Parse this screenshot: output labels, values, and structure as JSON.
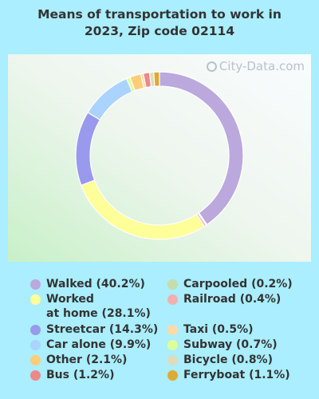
{
  "chart_data": {
    "type": "pie",
    "title": "Means of transportation to work in 2023, Zip code 02114",
    "donut": true,
    "slices": [
      {
        "label": "Walked (40.2%)",
        "value": 40.2,
        "color": "#bba8dd"
      },
      {
        "label": "Worked at home (28.1%)",
        "label_lines": [
          "Worked",
          "at home (28.1%)"
        ],
        "value": 28.1,
        "color": "#ffff99"
      },
      {
        "label": "Streetcar (14.3%)",
        "value": 14.3,
        "color": "#9999ee"
      },
      {
        "label": "Car alone (9.9%)",
        "value": 9.9,
        "color": "#aad4ff"
      },
      {
        "label": "Other (2.1%)",
        "value": 2.1,
        "color": "#ffcc77"
      },
      {
        "label": "Bus (1.2%)",
        "value": 1.2,
        "color": "#ee8888"
      },
      {
        "label": "Carpooled (0.2%)",
        "value": 0.2,
        "color": "#c4ddaa"
      },
      {
        "label": "Railroad (0.4%)",
        "value": 0.4,
        "color": "#f0b0b0"
      },
      {
        "label": "Taxi (0.5%)",
        "value": 0.5,
        "color": "#ffd9aa"
      },
      {
        "label": "Subway (0.7%)",
        "value": 0.7,
        "color": "#ddff99"
      },
      {
        "label": "Bicycle (0.8%)",
        "value": 0.8,
        "color": "#dddcbb"
      },
      {
        "label": "Ferryboat (1.1%)",
        "value": 1.1,
        "color": "#ddaa33"
      }
    ],
    "slice_order_clockwise_from_top": [
      0,
      6,
      7,
      1,
      2,
      3,
      9,
      4,
      8,
      5,
      10,
      11
    ],
    "legend_placement": "bottom"
  },
  "watermark": {
    "text": "City-Data.com"
  }
}
